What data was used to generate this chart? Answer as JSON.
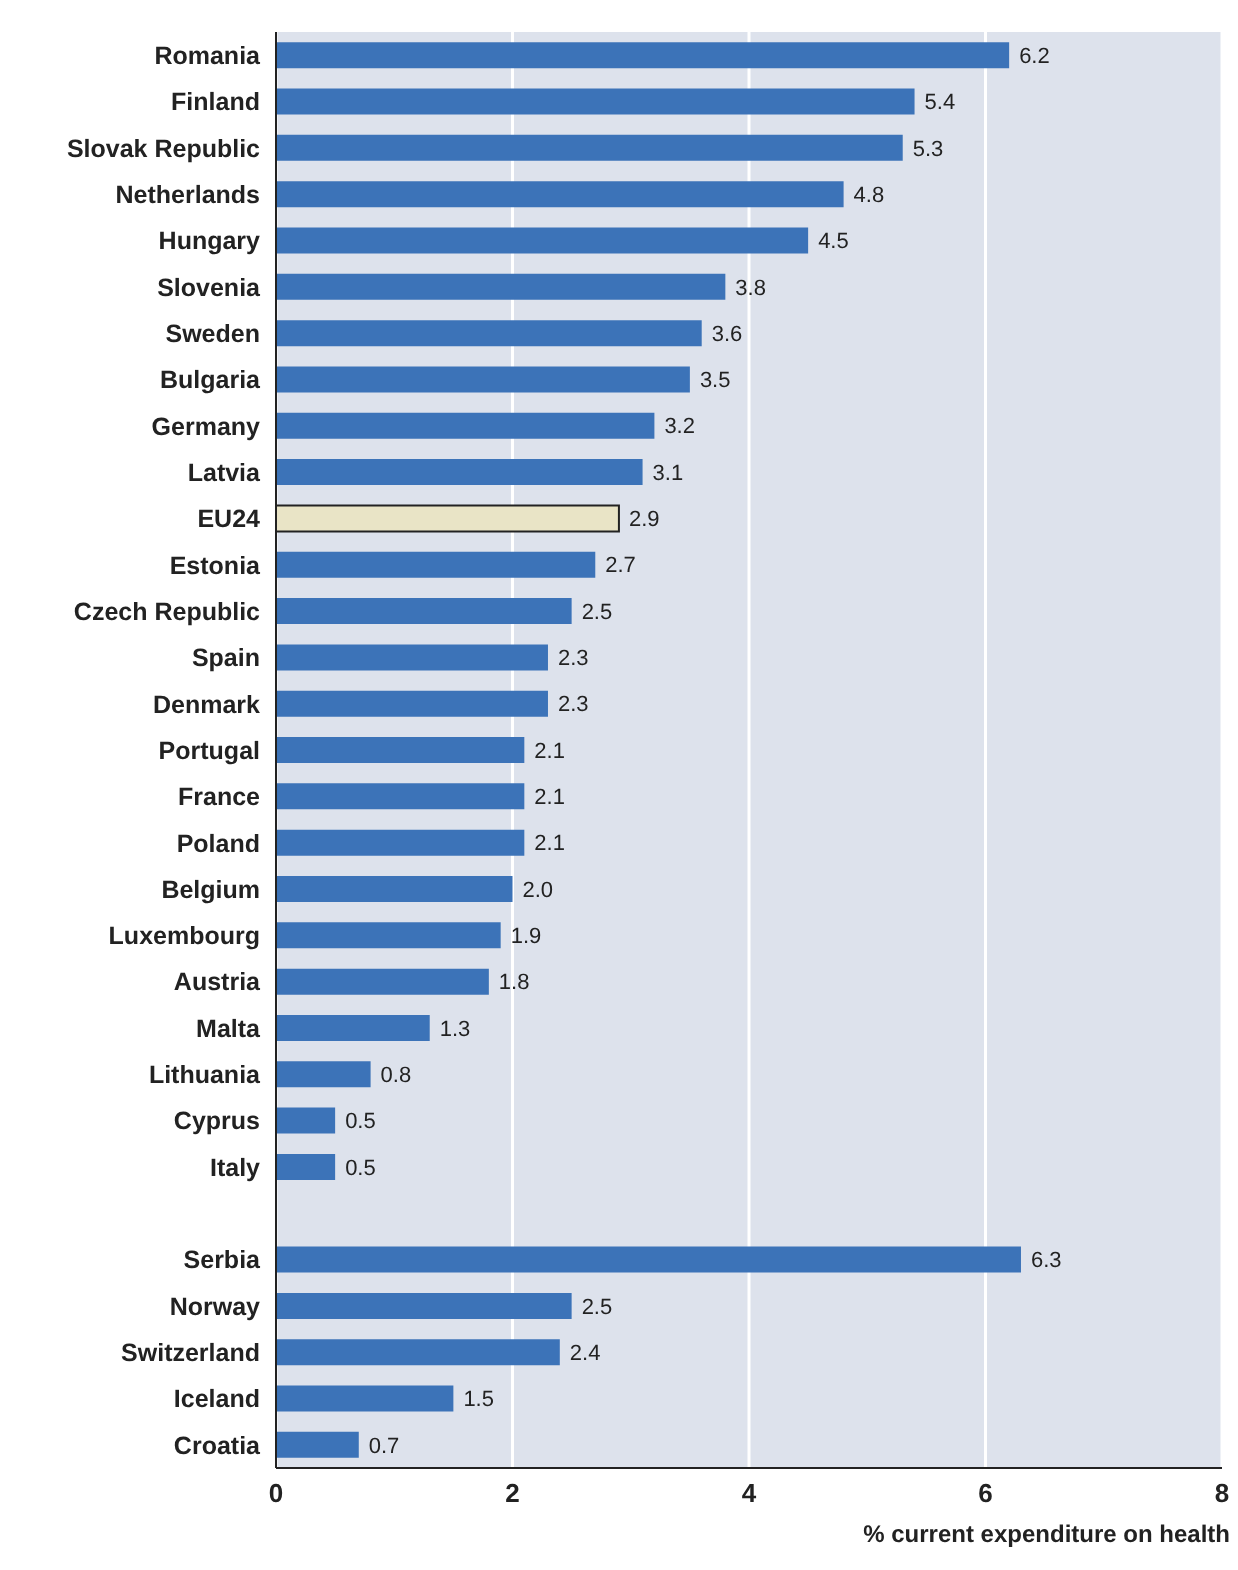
{
  "chart_data": {
    "type": "bar",
    "orientation": "horizontal",
    "xlabel": "% current expenditure on health",
    "categories": [
      "Romania",
      "Finland",
      "Slovak Republic",
      "Netherlands",
      "Hungary",
      "Slovenia",
      "Sweden",
      "Bulgaria",
      "Germany",
      "Latvia",
      "EU24",
      "Estonia",
      "Czech Republic",
      "Spain",
      "Denmark",
      "Portugal",
      "France",
      "Poland",
      "Belgium",
      "Luxembourg",
      "Austria",
      "Malta",
      "Lithuania",
      "Cyprus",
      "Italy",
      null,
      "Serbia",
      "Norway",
      "Switzerland",
      "Iceland",
      "Croatia"
    ],
    "values": [
      6.2,
      5.4,
      5.3,
      4.8,
      4.5,
      3.8,
      3.6,
      3.5,
      3.2,
      3.1,
      2.9,
      2.7,
      2.5,
      2.3,
      2.3,
      2.1,
      2.1,
      2.1,
      2.0,
      1.9,
      1.8,
      1.3,
      0.8,
      0.5,
      0.5,
      null,
      6.3,
      2.5,
      2.4,
      1.5,
      0.7
    ],
    "value_labels": [
      "6.2",
      "5.4",
      "5.3",
      "4.8",
      "4.5",
      "3.8",
      "3.6",
      "3.5",
      "3.2",
      "3.1",
      "2.9",
      "2.7",
      "2.5",
      "2.3",
      "2.3",
      "2.1",
      "2.1",
      "2.1",
      "2.0",
      "1.9",
      "1.8",
      "1.3",
      "0.8",
      "0.5",
      "0.5",
      null,
      "6.3",
      "2.5",
      "2.4",
      "1.5",
      "0.7"
    ],
    "colors": [
      "#3c73b8",
      "#3c73b8",
      "#3c73b8",
      "#3c73b8",
      "#3c73b8",
      "#3c73b8",
      "#3c73b8",
      "#3c73b8",
      "#3c73b8",
      "#3c73b8",
      "#e9e4c6",
      "#3c73b8",
      "#3c73b8",
      "#3c73b8",
      "#3c73b8",
      "#3c73b8",
      "#3c73b8",
      "#3c73b8",
      "#3c73b8",
      "#3c73b8",
      "#3c73b8",
      "#3c73b8",
      "#3c73b8",
      "#3c73b8",
      "#3c73b8",
      "#3c73b8",
      "#3c73b8",
      "#3c73b8",
      "#3c73b8",
      "#3c73b8",
      "#3c73b8"
    ],
    "xlim": [
      0,
      8
    ],
    "xticks": [
      0,
      2,
      4,
      6,
      8
    ],
    "grid": "x"
  }
}
